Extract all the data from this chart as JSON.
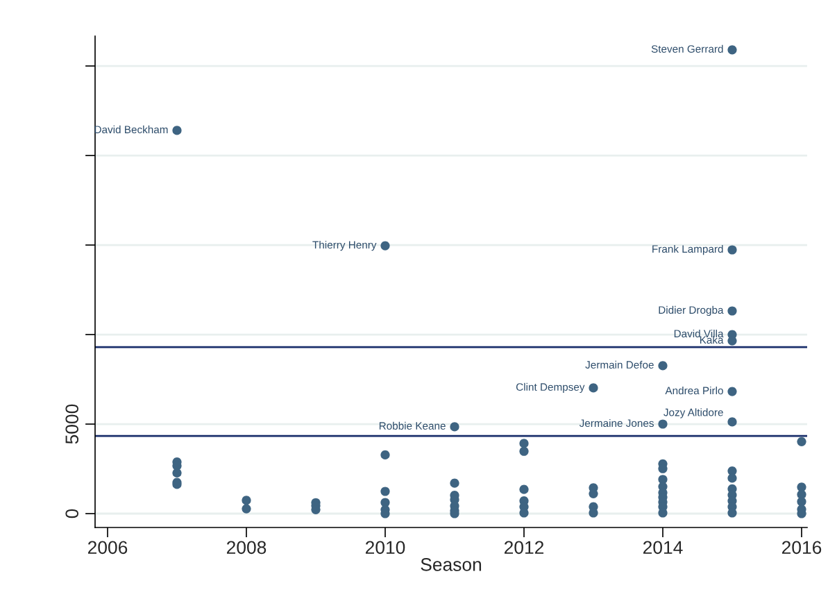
{
  "chart_data": {
    "type": "scatter",
    "xlabel": "Season",
    "x": [
      2007,
      2007,
      2007,
      2007,
      2007,
      2007,
      2008,
      2008,
      2009,
      2009,
      2009,
      2010,
      2010,
      2010,
      2010,
      2010,
      2010,
      2011,
      2011,
      2011,
      2011,
      2011,
      2011,
      2011,
      2012,
      2012,
      2012,
      2012,
      2012,
      2012,
      2013,
      2013,
      2013,
      2013,
      2013,
      2014,
      2014,
      2014,
      2014,
      2014,
      2014,
      2014,
      2014,
      2014,
      2014,
      2014,
      2015,
      2015,
      2015,
      2015,
      2015,
      2015,
      2015,
      2015,
      2015,
      2015,
      2015,
      2015,
      2015,
      2015,
      2016,
      2016,
      2016,
      2016,
      2016,
      2016
    ],
    "series": [
      {
        "color": "#3e6482",
        "values": [
          21400,
          2880,
          2670,
          2270,
          1740,
          1630,
          740,
          270,
          610,
          440,
          220,
          14960,
          3280,
          1240,
          620,
          220,
          0,
          4850,
          1700,
          1020,
          780,
          430,
          160,
          0,
          3920,
          3480,
          1350,
          710,
          380,
          40,
          7020,
          1440,
          1110,
          380,
          40,
          8260,
          5000,
          2780,
          2510,
          1910,
          1510,
          1170,
          910,
          640,
          380,
          40,
          25900,
          14730,
          11320,
          10000,
          9650,
          6820,
          5120,
          2380,
          1980,
          1380,
          1040,
          710,
          380,
          40,
          4020,
          1480,
          1070,
          670,
          240,
          0
        ]
      }
    ],
    "marker": "circle",
    "xlim": [
      2005.82,
      2016.08
    ],
    "xticks": [
      2006,
      2008,
      2010,
      2012,
      2014,
      2016
    ],
    "ylim": [
      -775,
      26670
    ],
    "yticks": [
      0,
      5000,
      {
        "value": 10000,
        "label": null
      },
      {
        "value": 15000,
        "label": null
      },
      {
        "value": 20000,
        "label": null
      },
      {
        "value": 25000,
        "label": null
      }
    ],
    "grid": "y",
    "ref_lines": [
      {
        "axis": "y",
        "value": 9300,
        "color": "#1a2f6b"
      },
      {
        "axis": "y",
        "value": 4340,
        "color": "#1a2f6b"
      }
    ],
    "annotations": [
      {
        "text": "David Beckham",
        "x": 2007,
        "y": 21400
      },
      {
        "text": "Thierry Henry",
        "x": 2010,
        "y": 14960
      },
      {
        "text": "Robbie Keane",
        "x": 2011,
        "y": 4850
      },
      {
        "text": "Clint Dempsey",
        "x": 2013,
        "y": 7020
      },
      {
        "text": "Jermain Defoe",
        "x": 2014,
        "y": 8260
      },
      {
        "text": "Jermaine Jones",
        "x": 2014,
        "y": 5000
      },
      {
        "text": "Steven Gerrard",
        "x": 2015,
        "y": 25900
      },
      {
        "text": "Frank Lampard",
        "x": 2015,
        "y": 14730
      },
      {
        "text": "Didier Drogba",
        "x": 2015,
        "y": 11320
      },
      {
        "text": "David Villa",
        "x": 2015,
        "y": 10000
      },
      {
        "text": "Kaka",
        "x": 2015,
        "y": 9650
      },
      {
        "text": "Andrea Pirlo",
        "x": 2015,
        "y": 6820
      },
      {
        "text": "Jozy Altidore",
        "x": 2015,
        "y": 5120
      }
    ]
  }
}
